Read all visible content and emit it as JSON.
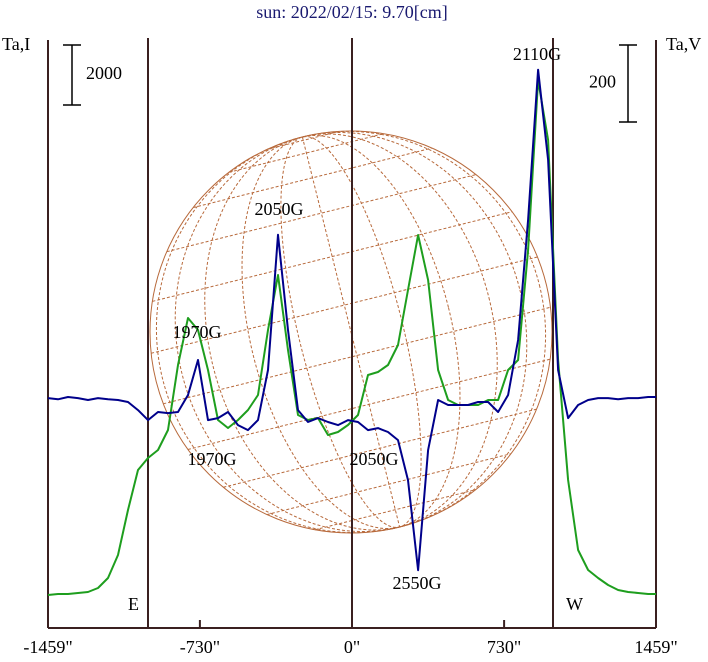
{
  "chart_data": {
    "type": "line",
    "title": "sun: 2022/02/15: 9.70[cm]",
    "y_axis_label": "Ta,I",
    "y2_axis_label": "Ta,V",
    "x": [
      -1459,
      -1411,
      -1363,
      -1315,
      -1267,
      -1219,
      -1171,
      -1123,
      -1075,
      -1027,
      -979,
      -931,
      -883,
      -835,
      -787,
      -739,
      -691,
      -643,
      -595,
      -547,
      -499,
      -451,
      -403,
      -355,
      -307,
      -259,
      -211,
      -163,
      -115,
      -67,
      -19,
      29,
      77,
      125,
      173,
      221,
      269,
      317,
      365,
      413,
      461,
      509,
      557,
      605,
      653,
      701,
      749,
      797,
      845,
      893,
      941,
      989,
      1037,
      1085,
      1133,
      1181,
      1229,
      1277,
      1325,
      1373,
      1421,
      1459
    ],
    "series": [
      {
        "name": "I",
        "color": "#1e9e1e",
        "axis": "y",
        "values": [
          0,
          33,
          33,
          67,
          100,
          233,
          567,
          1333,
          2833,
          4167,
          4567,
          4833,
          5500,
          7667,
          9233,
          8833,
          7500,
          5833,
          5567,
          5833,
          6167,
          6667,
          8833,
          10667,
          8167,
          6000,
          5833,
          5900,
          5333,
          5433,
          5667,
          6000,
          7333,
          7433,
          7667,
          8333,
          10167,
          12000,
          10500,
          7500,
          6500,
          6333,
          6333,
          6333,
          6500,
          6500,
          7500,
          7833,
          11500,
          17167,
          15167,
          7833,
          3833,
          1500,
          833,
          567,
          333,
          167,
          100,
          67,
          33,
          33
        ]
      },
      {
        "name": "V",
        "color": "#00008b",
        "axis": "y2",
        "values": [
          0,
          -3,
          3,
          0,
          -5,
          0,
          -3,
          -5,
          -10,
          -31,
          -57,
          -36,
          -39,
          -36,
          8,
          99,
          -57,
          -52,
          -36,
          -70,
          -83,
          -57,
          73,
          424,
          177,
          -31,
          -62,
          -52,
          -62,
          -70,
          -57,
          -62,
          -83,
          -78,
          -88,
          -109,
          -213,
          -447,
          -135,
          -5,
          -18,
          -18,
          -18,
          -10,
          -10,
          -36,
          8,
          151,
          463,
          853,
          619,
          73,
          -52,
          -18,
          -5,
          0,
          0,
          -3,
          0,
          0,
          3,
          3
        ]
      }
    ],
    "xlim": [
      -1459,
      1459
    ],
    "xticks": [
      {
        "value": -1459,
        "label": "-1459\""
      },
      {
        "value": -730,
        "label": "-730\""
      },
      {
        "value": 0,
        "label": "0\""
      },
      {
        "value": 730,
        "label": "730\""
      },
      {
        "value": 1459,
        "label": "1459\""
      }
    ],
    "ylim": [
      -1100,
      18500
    ],
    "y2lim": [
      -597,
      930
    ],
    "scale_bars": [
      {
        "axis": "y",
        "value": 2000
      },
      {
        "axis": "y2",
        "value": 200
      }
    ],
    "limb_labels": [
      "E",
      "W"
    ],
    "annotations": [
      "2110G",
      "2050G",
      "1970G",
      "1970G",
      "2050G",
      "2550G"
    ]
  }
}
